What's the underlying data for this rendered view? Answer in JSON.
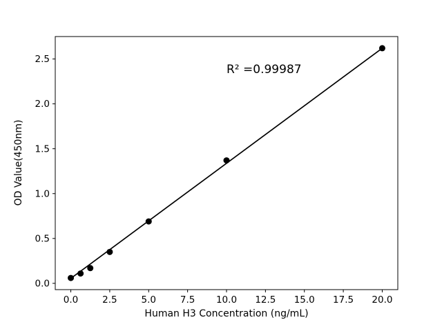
{
  "figure": {
    "background": "#ffffff"
  },
  "chart_data": {
    "type": "scatter",
    "title": "",
    "xlabel": "Human H3 Concentration (ng/mL)",
    "ylabel": "OD Value(450nm)",
    "x": [
      0,
      0.625,
      1.25,
      2.5,
      5,
      10,
      20
    ],
    "y": [
      0.06,
      0.11,
      0.17,
      0.35,
      0.69,
      1.37,
      2.62
    ],
    "fit_line": {
      "x": [
        0,
        20
      ],
      "y": [
        0.055,
        2.62
      ]
    },
    "annotation": {
      "text": "R² =0.99987",
      "x": 10,
      "y": 2.33
    },
    "x_ticks": [
      0,
      2.5,
      5,
      7.5,
      10,
      12.5,
      15,
      17.5,
      20
    ],
    "x_tick_labels": [
      "0.0",
      "2.5",
      "5.0",
      "7.5",
      "10.0",
      "12.5",
      "15.0",
      "17.5",
      "20.0"
    ],
    "y_ticks": [
      0,
      0.5,
      1,
      1.5,
      2,
      2.5
    ],
    "y_tick_labels": [
      "0.0",
      "0.5",
      "1.0",
      "1.5",
      "2.0",
      "2.5"
    ],
    "xlim": [
      -1,
      21
    ],
    "ylim": [
      -0.07,
      2.75
    ],
    "grid": false,
    "legend": null,
    "marker_color": "#000000",
    "line_color": "#000000"
  }
}
